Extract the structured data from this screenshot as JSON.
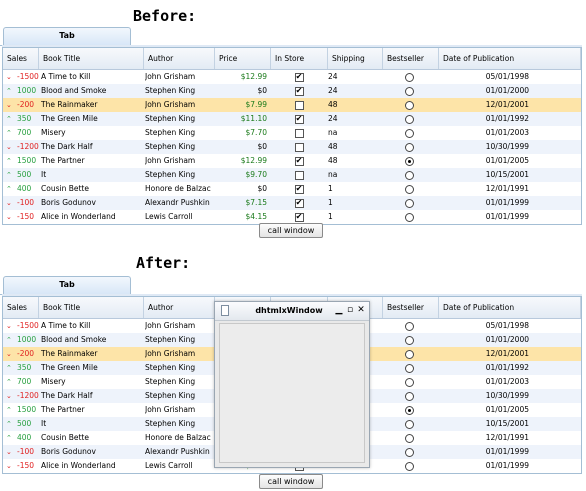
{
  "headings": {
    "before": "Before:",
    "after": "After:"
  },
  "tab_label": "Tab",
  "columns": [
    "Sales",
    "Book Title",
    "Author",
    "Price",
    "In Store",
    "Shipping",
    "Bestseller",
    "Date of Publication"
  ],
  "rows": [
    {
      "trend": "down",
      "sales": "-1500",
      "title": "A Time to Kill",
      "author": "John Grisham",
      "price": "$12.99",
      "in_store": true,
      "shipping": "24",
      "bestseller": false,
      "date": "05/01/1998"
    },
    {
      "trend": "up",
      "sales": "1000",
      "title": "Blood and Smoke",
      "author": "Stephen King",
      "price": "$0",
      "in_store": true,
      "shipping": "24",
      "bestseller": false,
      "date": "01/01/2000"
    },
    {
      "trend": "down",
      "sales": "-200",
      "title": "The Rainmaker",
      "author": "John Grisham",
      "price": "$7.99",
      "in_store": false,
      "shipping": "48",
      "bestseller": false,
      "date": "12/01/2001"
    },
    {
      "trend": "up",
      "sales": "350",
      "title": "The Green Mile",
      "author": "Stephen King",
      "price": "$11.10",
      "in_store": true,
      "shipping": "24",
      "bestseller": false,
      "date": "01/01/1992"
    },
    {
      "trend": "up",
      "sales": "700",
      "title": "Misery",
      "author": "Stephen King",
      "price": "$7.70",
      "in_store": false,
      "shipping": "na",
      "bestseller": false,
      "date": "01/01/2003"
    },
    {
      "trend": "down",
      "sales": "-1200",
      "title": "The Dark Half",
      "author": "Stephen King",
      "price": "$0",
      "in_store": false,
      "shipping": "48",
      "bestseller": false,
      "date": "10/30/1999"
    },
    {
      "trend": "up",
      "sales": "1500",
      "title": "The Partner",
      "author": "John Grisham",
      "price": "$12.99",
      "in_store": true,
      "shipping": "48",
      "bestseller": true,
      "date": "01/01/2005"
    },
    {
      "trend": "up",
      "sales": "500",
      "title": "It",
      "author": "Stephen King",
      "price": "$9.70",
      "in_store": false,
      "shipping": "na",
      "bestseller": false,
      "date": "10/15/2001"
    },
    {
      "trend": "up",
      "sales": "400",
      "title": "Cousin Bette",
      "author": "Honore de Balzac",
      "price": "$0",
      "in_store": true,
      "shipping": "1",
      "bestseller": false,
      "date": "12/01/1991"
    },
    {
      "trend": "down",
      "sales": "-100",
      "title": "Boris Godunov",
      "author": "Alexandr Pushkin",
      "price": "$7.15",
      "in_store": true,
      "shipping": "1",
      "bestseller": false,
      "date": "01/01/1999"
    },
    {
      "trend": "down",
      "sales": "-150",
      "title": "Alice in Wonderland",
      "author": "Lewis Carroll",
      "price": "$4.15",
      "in_store": true,
      "shipping": "1",
      "bestseller": false,
      "date": "01/01/1999"
    }
  ],
  "selected_row": 2,
  "button_label": "call window",
  "window": {
    "title": "dhtmlxWindow",
    "controls": {
      "minimize": "▁",
      "maximize": "▫",
      "close": "✕"
    }
  },
  "colors": {
    "up": "#28a040",
    "down": "#e02020",
    "selected": "#fde4a8",
    "price": "#1a7a1a"
  }
}
